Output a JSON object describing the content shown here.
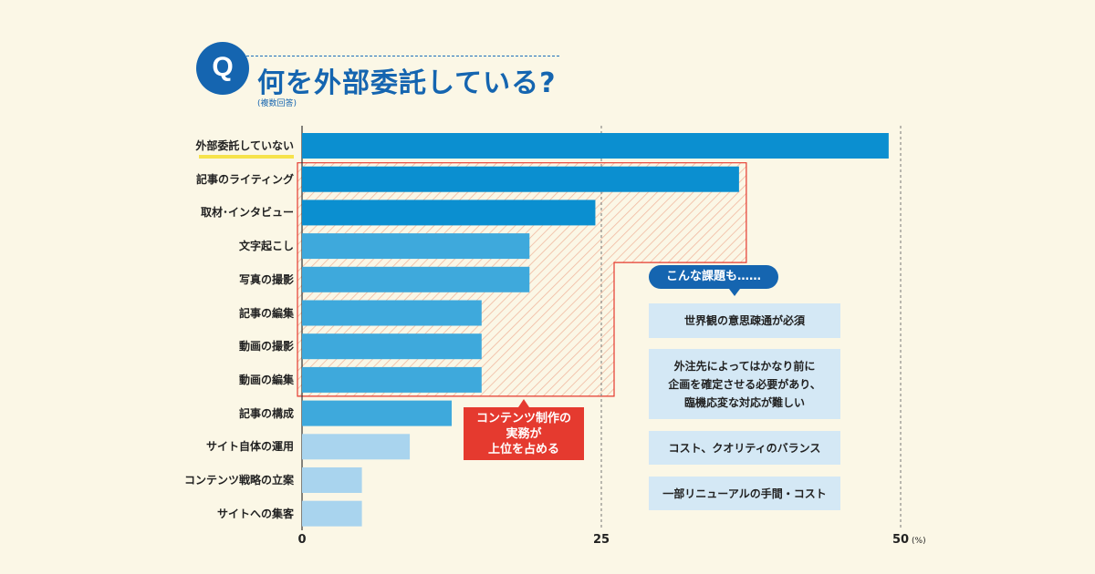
{
  "header": {
    "q_mark": "Q",
    "title": "何を外部委託している?",
    "subtitle": "(複数回答)"
  },
  "chart_data": {
    "type": "bar",
    "orientation": "horizontal",
    "categories": [
      "外部委託していない",
      "記事のライティング",
      "取材･インタビュー",
      "文字起こし",
      "写真の撮影",
      "記事の編集",
      "動画の撮影",
      "動画の編集",
      "記事の構成",
      "サイト自体の運用",
      "コンテンツ戦略の立案",
      "サイトへの集客"
    ],
    "values": [
      49,
      36.5,
      24.5,
      19,
      19,
      15,
      15,
      15,
      12.5,
      9,
      5,
      5
    ],
    "bar_colors": [
      "#0b8fd0",
      "#0b8fd0",
      "#0b8fd0",
      "#3ea9dc",
      "#3ea9dc",
      "#3ea9dc",
      "#3ea9dc",
      "#3ea9dc",
      "#3ea9dc",
      "#a9d4ee",
      "#a9d4ee",
      "#a9d4ee"
    ],
    "xlim": [
      0,
      50
    ],
    "ticks": [
      "0",
      "25",
      "50"
    ],
    "tick_values": [
      0,
      25,
      50
    ],
    "unit": "(%)",
    "highlight_range": [
      1,
      7
    ],
    "highlight_color": "#e53a2f"
  },
  "callout": {
    "lines": [
      "コンテンツ制作の",
      "実務が",
      "上位を占める"
    ]
  },
  "issues": {
    "header": "こんな課題も……",
    "items": [
      {
        "lines": [
          "世界観の意思疎通が必須"
        ]
      },
      {
        "lines": [
          "外注先によってはかなり前に",
          "企画を確定させる必要があり、",
          "臨機応変な対応が難しい"
        ]
      },
      {
        "lines": [
          "コスト、クオリティのバランス"
        ]
      },
      {
        "lines": [
          "一部リニューアルの手間・コスト"
        ]
      }
    ]
  }
}
